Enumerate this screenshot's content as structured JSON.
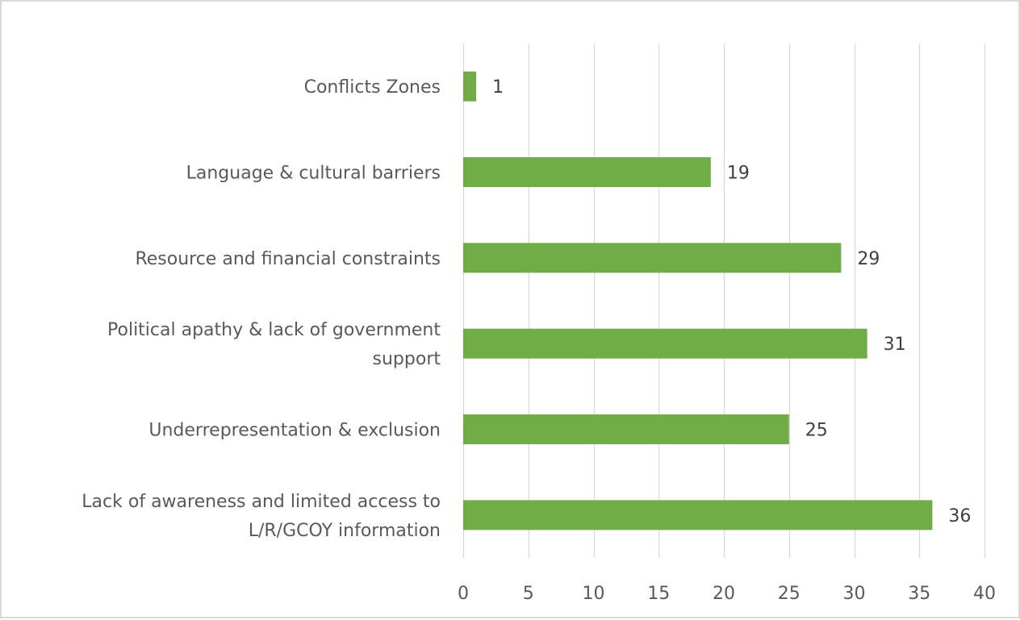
{
  "chart_data": {
    "type": "bar",
    "orientation": "horizontal",
    "title": "",
    "xlabel": "",
    "ylabel": "",
    "categories": [
      "Conflicts Zones",
      "Language & cultural barriers",
      "Resource and financial constraints",
      "Political apathy & lack of government support",
      "Underrepresentation & exclusion",
      "Lack of awareness and limited access to L/R/GCOY information"
    ],
    "category_lines": [
      [
        "Conflicts Zones"
      ],
      [
        "Language & cultural barriers"
      ],
      [
        "Resource and financial constraints"
      ],
      [
        "Political apathy & lack of government",
        "support"
      ],
      [
        "Underrepresentation & exclusion"
      ],
      [
        "Lack of awareness and limited access to",
        "L/R/GCOY information"
      ]
    ],
    "values": [
      1,
      19,
      29,
      31,
      25,
      36
    ],
    "data_labels": [
      "1",
      "19",
      "29",
      "31",
      "25",
      "36"
    ],
    "xlim": [
      0,
      40
    ],
    "xticks": [
      0,
      5,
      10,
      15,
      20,
      25,
      30,
      35,
      40
    ],
    "xtick_labels": [
      "0",
      "5",
      "10",
      "15",
      "20",
      "25",
      "30",
      "35",
      "40"
    ],
    "grid": "vertical",
    "legend": "none",
    "bar_color": "#70ad47",
    "grid_color": "#d9d9d9"
  }
}
